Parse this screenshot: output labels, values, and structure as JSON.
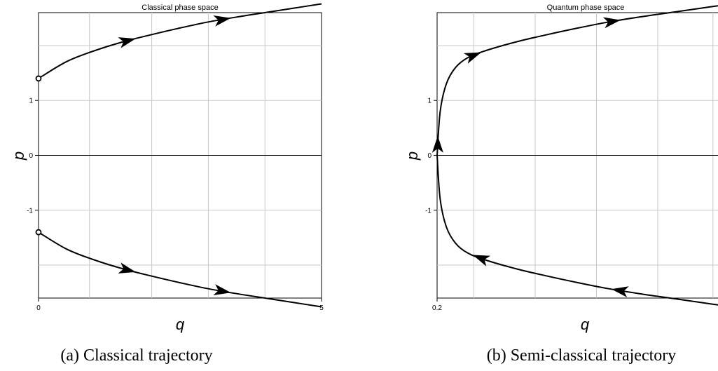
{
  "chart_data": [
    {
      "type": "line",
      "title": "Classical phase space",
      "xlabel": "q",
      "ylabel": "p",
      "caption": "(a) Classical trajectory",
      "xlim": [
        0,
        5
      ],
      "ylim": [
        -2.6,
        2.6
      ],
      "xticks": [
        "0",
        "5"
      ],
      "yticks": [
        "1",
        "0",
        "-1"
      ],
      "grid": true,
      "series": [
        {
          "x": [
            0,
            0.5,
            1,
            1.5,
            2,
            2.5,
            3,
            3.5,
            4,
            4.5,
            5
          ],
          "y": [
            1.4,
            1.71,
            1.91,
            2.07,
            2.2,
            2.32,
            2.43,
            2.52,
            2.6,
            2.68,
            2.76
          ],
          "direction": "increasing q",
          "start_marker": "open circle"
        },
        {
          "x": [
            0,
            0.5,
            1,
            1.5,
            2,
            2.5,
            3,
            3.5,
            4,
            4.5,
            5
          ],
          "y": [
            -1.4,
            -1.71,
            -1.91,
            -2.07,
            -2.2,
            -2.32,
            -2.43,
            -2.52,
            -2.6,
            -2.68,
            -2.76
          ],
          "direction": "decreasing q",
          "start_marker": "open circle"
        }
      ]
    },
    {
      "type": "line",
      "title": "Quantum phase space",
      "xlabel": "q",
      "ylabel": "p",
      "caption": "(b) Semi-classical trajectory",
      "xlim": [
        0.2,
        5
      ],
      "ylim": [
        -2.6,
        2.6
      ],
      "xticks": [
        "0.2",
        "5"
      ],
      "yticks": [
        "1",
        "0",
        "-1"
      ],
      "grid": true,
      "series": [
        {
          "x": [
            5,
            4.5,
            4,
            3.5,
            3,
            2.5,
            2,
            1.5,
            1,
            0.7,
            0.5,
            0.35,
            0.25,
            0.2
          ],
          "y": [
            -2.76,
            -2.68,
            -2.6,
            -2.52,
            -2.43,
            -2.32,
            -2.2,
            -2.07,
            -1.91,
            -1.78,
            -1.6,
            -1.3,
            -0.8,
            0
          ],
          "direction": "decreasing q"
        },
        {
          "x": [
            0.2,
            0.25,
            0.35,
            0.5,
            0.7,
            1,
            1.5,
            2,
            2.5,
            3,
            3.5,
            4,
            4.5,
            5
          ],
          "y": [
            0,
            0.8,
            1.3,
            1.6,
            1.78,
            1.91,
            2.07,
            2.2,
            2.32,
            2.43,
            2.52,
            2.6,
            2.68,
            2.76
          ],
          "direction": "increasing q"
        }
      ]
    }
  ]
}
